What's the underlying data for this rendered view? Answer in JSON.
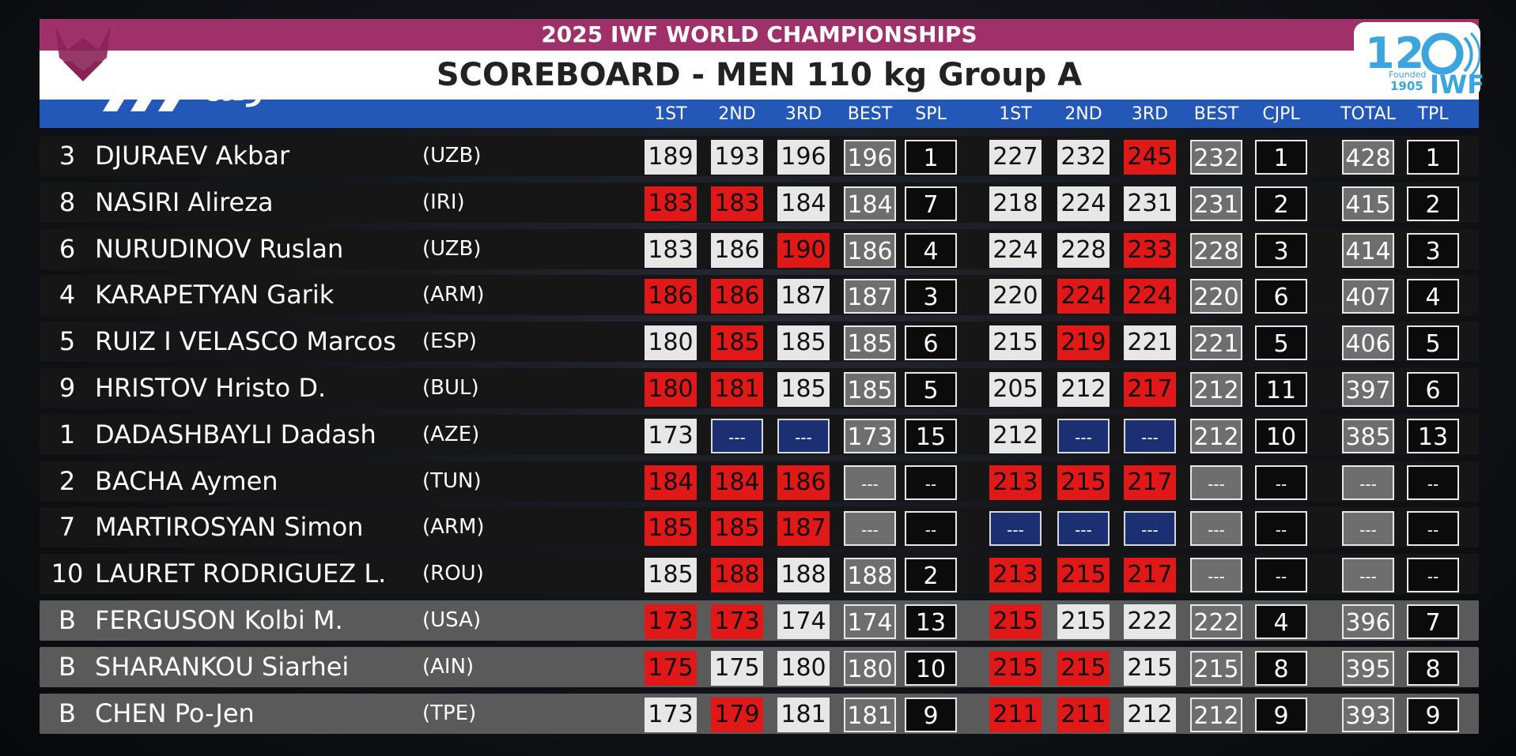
{
  "header": {
    "event": "2025 IWF WORLD CHAMPIONSHIPS",
    "title": "SCOREBOARD - MEN 110 kg Group A",
    "channel_logo_text": "زنده",
    "iwf_logo": {
      "number": "120",
      "founded_label": "Founded",
      "founded_year": "1905",
      "org": "IWF"
    }
  },
  "columns": [
    "1ST",
    "2ND",
    "3RD",
    "BEST",
    "SPL",
    "1ST",
    "2ND",
    "3RD",
    "BEST",
    "CJPL",
    "TOTAL",
    "TPL"
  ],
  "colors": {
    "good": "#e7e7e7",
    "fail": "#e01818",
    "not_attempted": "#1c2f72",
    "header_magenta": "#a0306a",
    "header_blue": "#2458b8"
  },
  "rows": [
    {
      "lot": "3",
      "name": "DJURAEV Akbar",
      "nation": "(UZB)",
      "reserve": false,
      "snatch": [
        {
          "v": "189",
          "s": "g"
        },
        {
          "v": "193",
          "s": "g"
        },
        {
          "v": "196",
          "s": "g"
        }
      ],
      "snatch_best": "196",
      "spl": "1",
      "cj": [
        {
          "v": "227",
          "s": "g"
        },
        {
          "v": "232",
          "s": "g"
        },
        {
          "v": "245",
          "s": "f"
        }
      ],
      "cj_best": "232",
      "cjpl": "1",
      "total": "428",
      "tpl": "1"
    },
    {
      "lot": "8",
      "name": "NASIRI Alireza",
      "nation": "(IRI)",
      "reserve": false,
      "snatch": [
        {
          "v": "183",
          "s": "f"
        },
        {
          "v": "183",
          "s": "f"
        },
        {
          "v": "184",
          "s": "g"
        }
      ],
      "snatch_best": "184",
      "spl": "7",
      "cj": [
        {
          "v": "218",
          "s": "g"
        },
        {
          "v": "224",
          "s": "g"
        },
        {
          "v": "231",
          "s": "g"
        }
      ],
      "cj_best": "231",
      "cjpl": "2",
      "total": "415",
      "tpl": "2"
    },
    {
      "lot": "6",
      "name": "NURUDINOV Ruslan",
      "nation": "(UZB)",
      "reserve": false,
      "snatch": [
        {
          "v": "183",
          "s": "g"
        },
        {
          "v": "186",
          "s": "g"
        },
        {
          "v": "190",
          "s": "f"
        }
      ],
      "snatch_best": "186",
      "spl": "4",
      "cj": [
        {
          "v": "224",
          "s": "g"
        },
        {
          "v": "228",
          "s": "g"
        },
        {
          "v": "233",
          "s": "f"
        }
      ],
      "cj_best": "228",
      "cjpl": "3",
      "total": "414",
      "tpl": "3"
    },
    {
      "lot": "4",
      "name": "KARAPETYAN Garik",
      "nation": "(ARM)",
      "reserve": false,
      "snatch": [
        {
          "v": "186",
          "s": "f"
        },
        {
          "v": "186",
          "s": "f"
        },
        {
          "v": "187",
          "s": "g"
        }
      ],
      "snatch_best": "187",
      "spl": "3",
      "cj": [
        {
          "v": "220",
          "s": "g"
        },
        {
          "v": "224",
          "s": "f"
        },
        {
          "v": "224",
          "s": "f"
        }
      ],
      "cj_best": "220",
      "cjpl": "6",
      "total": "407",
      "tpl": "4"
    },
    {
      "lot": "5",
      "name": "RUIZ I VELASCO Marcos",
      "nation": "(ESP)",
      "reserve": false,
      "snatch": [
        {
          "v": "180",
          "s": "g"
        },
        {
          "v": "185",
          "s": "f"
        },
        {
          "v": "185",
          "s": "g"
        }
      ],
      "snatch_best": "185",
      "spl": "6",
      "cj": [
        {
          "v": "215",
          "s": "g"
        },
        {
          "v": "219",
          "s": "f"
        },
        {
          "v": "221",
          "s": "g"
        }
      ],
      "cj_best": "221",
      "cjpl": "5",
      "total": "406",
      "tpl": "5"
    },
    {
      "lot": "9",
      "name": "HRISTOV Hristo D.",
      "nation": "(BUL)",
      "reserve": false,
      "snatch": [
        {
          "v": "180",
          "s": "f"
        },
        {
          "v": "181",
          "s": "f"
        },
        {
          "v": "185",
          "s": "g"
        }
      ],
      "snatch_best": "185",
      "spl": "5",
      "cj": [
        {
          "v": "205",
          "s": "g"
        },
        {
          "v": "212",
          "s": "g"
        },
        {
          "v": "217",
          "s": "f"
        }
      ],
      "cj_best": "212",
      "cjpl": "11",
      "total": "397",
      "tpl": "6"
    },
    {
      "lot": "1",
      "name": "DADASHBAYLI Dadash",
      "nation": "(AZE)",
      "reserve": false,
      "snatch": [
        {
          "v": "173",
          "s": "g"
        },
        {
          "v": "---",
          "s": "n"
        },
        {
          "v": "---",
          "s": "n"
        }
      ],
      "snatch_best": "173",
      "spl": "15",
      "cj": [
        {
          "v": "212",
          "s": "g"
        },
        {
          "v": "---",
          "s": "n"
        },
        {
          "v": "---",
          "s": "n"
        }
      ],
      "cj_best": "212",
      "cjpl": "10",
      "total": "385",
      "tpl": "13"
    },
    {
      "lot": "2",
      "name": "BACHA Aymen",
      "nation": "(TUN)",
      "reserve": false,
      "snatch": [
        {
          "v": "184",
          "s": "f"
        },
        {
          "v": "184",
          "s": "f"
        },
        {
          "v": "186",
          "s": "f"
        }
      ],
      "snatch_best": "---",
      "spl": "--",
      "cj": [
        {
          "v": "213",
          "s": "f"
        },
        {
          "v": "215",
          "s": "f"
        },
        {
          "v": "217",
          "s": "f"
        }
      ],
      "cj_best": "---",
      "cjpl": "--",
      "total": "---",
      "tpl": "--"
    },
    {
      "lot": "7",
      "name": "MARTIROSYAN Simon",
      "nation": "(ARM)",
      "reserve": false,
      "snatch": [
        {
          "v": "185",
          "s": "f"
        },
        {
          "v": "185",
          "s": "f"
        },
        {
          "v": "187",
          "s": "f"
        }
      ],
      "snatch_best": "---",
      "spl": "--",
      "cj": [
        {
          "v": "---",
          "s": "n"
        },
        {
          "v": "---",
          "s": "n"
        },
        {
          "v": "---",
          "s": "n"
        }
      ],
      "cj_best": "---",
      "cjpl": "--",
      "total": "---",
      "tpl": "--"
    },
    {
      "lot": "10",
      "name": "LAURET RODRIGUEZ L.",
      "nation": "(ROU)",
      "reserve": false,
      "snatch": [
        {
          "v": "185",
          "s": "g"
        },
        {
          "v": "188",
          "s": "f"
        },
        {
          "v": "188",
          "s": "g"
        }
      ],
      "snatch_best": "188",
      "spl": "2",
      "cj": [
        {
          "v": "213",
          "s": "f"
        },
        {
          "v": "215",
          "s": "f"
        },
        {
          "v": "217",
          "s": "f"
        }
      ],
      "cj_best": "---",
      "cjpl": "--",
      "total": "---",
      "tpl": "--"
    },
    {
      "lot": "B",
      "name": "FERGUSON Kolbi M.",
      "nation": "(USA)",
      "reserve": true,
      "snatch": [
        {
          "v": "173",
          "s": "f"
        },
        {
          "v": "173",
          "s": "f"
        },
        {
          "v": "174",
          "s": "g"
        }
      ],
      "snatch_best": "174",
      "spl": "13",
      "cj": [
        {
          "v": "215",
          "s": "f"
        },
        {
          "v": "215",
          "s": "g"
        },
        {
          "v": "222",
          "s": "g"
        }
      ],
      "cj_best": "222",
      "cjpl": "4",
      "total": "396",
      "tpl": "7"
    },
    {
      "lot": "B",
      "name": "SHARANKOU Siarhei",
      "nation": "(AIN)",
      "reserve": true,
      "snatch": [
        {
          "v": "175",
          "s": "f"
        },
        {
          "v": "175",
          "s": "g"
        },
        {
          "v": "180",
          "s": "g"
        }
      ],
      "snatch_best": "180",
      "spl": "10",
      "cj": [
        {
          "v": "215",
          "s": "f"
        },
        {
          "v": "215",
          "s": "f"
        },
        {
          "v": "215",
          "s": "g"
        }
      ],
      "cj_best": "215",
      "cjpl": "8",
      "total": "395",
      "tpl": "8"
    },
    {
      "lot": "B",
      "name": "CHEN Po-Jen",
      "nation": "(TPE)",
      "reserve": true,
      "snatch": [
        {
          "v": "173",
          "s": "g"
        },
        {
          "v": "179",
          "s": "f"
        },
        {
          "v": "181",
          "s": "g"
        }
      ],
      "snatch_best": "181",
      "spl": "9",
      "cj": [
        {
          "v": "211",
          "s": "f"
        },
        {
          "v": "211",
          "s": "f"
        },
        {
          "v": "212",
          "s": "g"
        }
      ],
      "cj_best": "212",
      "cjpl": "9",
      "total": "393",
      "tpl": "9"
    }
  ]
}
